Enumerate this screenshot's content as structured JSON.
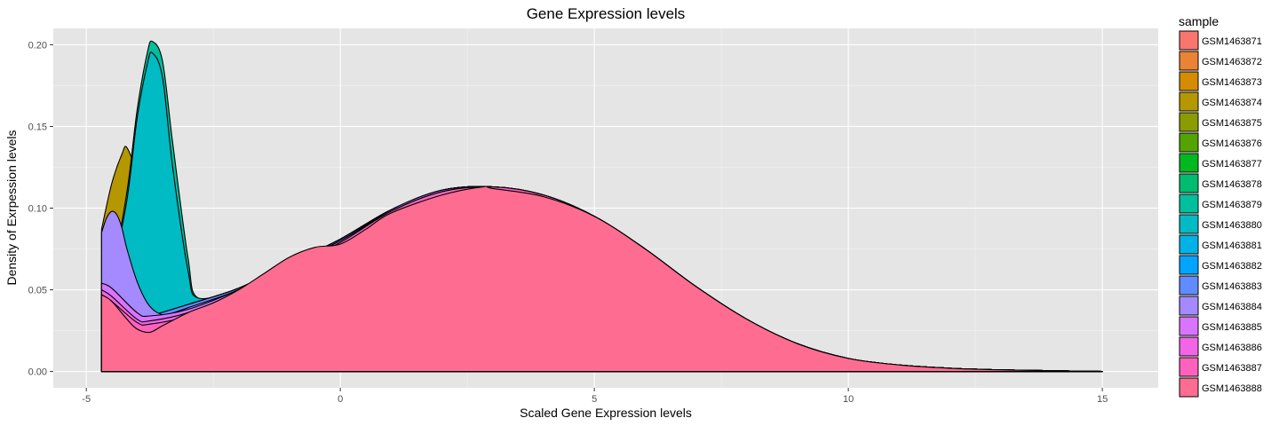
{
  "chart_data": {
    "type": "area",
    "title": "Gene Expression levels",
    "xlabel": "Scaled Gene Expression levels",
    "ylabel": "Density of Exrpession levels",
    "xlim": [
      -5.65,
      16.1
    ],
    "ylim": [
      -0.01,
      0.21
    ],
    "x_ticks": [
      -5,
      0,
      5,
      10,
      15
    ],
    "x_tick_labels": [
      "-5",
      "0",
      "5",
      "10",
      "15"
    ],
    "y_ticks": [
      0.0,
      0.05,
      0.1,
      0.15,
      0.2
    ],
    "y_tick_labels": [
      "0.00",
      "0.05",
      "0.10",
      "0.15",
      "0.20"
    ],
    "grid": true,
    "legend": {
      "title": "sample",
      "position": "right"
    },
    "series": [
      {
        "name": "GSM1463871",
        "color": "#F8766D",
        "x": [
          -4.7,
          -4.7,
          -4.5,
          -4.0,
          -3.75,
          -3.0,
          -2.0,
          -1.0,
          0.0,
          1.0,
          2.0,
          3.0,
          4.0,
          5.0,
          6.0,
          7.0,
          8.0,
          9.0,
          10.0,
          11.0,
          12.0,
          13.0,
          14.0,
          15.0
        ],
        "y": [
          0.0,
          0.045,
          0.04,
          0.032,
          0.033,
          0.04,
          0.05,
          0.065,
          0.08,
          0.098,
          0.11,
          0.113,
          0.108,
          0.095,
          0.075,
          0.052,
          0.032,
          0.017,
          0.008,
          0.004,
          0.002,
          0.001,
          0.0005,
          0.0
        ]
      },
      {
        "name": "GSM1463872",
        "color": "#EB8335",
        "x": [
          -4.7,
          -4.7,
          -4.5,
          -4.0,
          -3.75,
          -3.0,
          -2.0,
          -1.0,
          0.0,
          1.0,
          2.0,
          3.0,
          4.0,
          5.0,
          6.0,
          7.0,
          8.0,
          9.0,
          10.0,
          11.0,
          12.0,
          13.0,
          14.0,
          15.0
        ],
        "y": [
          0.0,
          0.046,
          0.041,
          0.033,
          0.034,
          0.041,
          0.051,
          0.066,
          0.081,
          0.099,
          0.111,
          0.113,
          0.108,
          0.095,
          0.075,
          0.052,
          0.032,
          0.017,
          0.008,
          0.004,
          0.002,
          0.001,
          0.0005,
          0.0
        ]
      },
      {
        "name": "GSM1463873",
        "color": "#D58C00",
        "x": [
          -4.7,
          -4.7,
          -4.5,
          -4.0,
          -3.75,
          -3.0,
          -2.0,
          -1.0,
          0.0,
          1.0,
          2.0,
          3.0,
          4.0,
          5.0,
          6.0,
          7.0,
          8.0,
          9.0,
          10.0,
          11.0,
          12.0,
          13.0,
          14.0,
          15.0
        ],
        "y": [
          0.0,
          0.046,
          0.041,
          0.033,
          0.034,
          0.041,
          0.051,
          0.066,
          0.081,
          0.099,
          0.111,
          0.113,
          0.108,
          0.095,
          0.075,
          0.052,
          0.032,
          0.017,
          0.008,
          0.004,
          0.002,
          0.001,
          0.0005,
          0.0
        ]
      },
      {
        "name": "GSM1463874",
        "color": "#B59700",
        "x": [
          -4.7,
          -4.7,
          -4.5,
          -4.3,
          -4.2,
          -4.0,
          -3.8,
          -3.5,
          -3.0,
          -2.0,
          -1.0,
          0.0,
          1.0,
          2.0,
          3.0,
          4.0,
          5.0,
          6.0,
          7.0,
          8.0,
          9.0,
          10.0,
          11.0,
          12.0,
          13.0,
          14.0,
          15.0
        ],
        "y": [
          0.0,
          0.087,
          0.115,
          0.133,
          0.137,
          0.12,
          0.09,
          0.06,
          0.043,
          0.051,
          0.066,
          0.081,
          0.099,
          0.111,
          0.113,
          0.108,
          0.095,
          0.075,
          0.052,
          0.032,
          0.017,
          0.008,
          0.004,
          0.002,
          0.001,
          0.0005,
          0.0
        ]
      },
      {
        "name": "GSM1463875",
        "color": "#8C9C00",
        "x": [
          -4.7,
          -4.7,
          -4.5,
          -4.0,
          -3.75,
          -3.0,
          -2.0,
          -1.0,
          0.0,
          1.0,
          2.0,
          3.0,
          4.0,
          5.0,
          6.0,
          7.0,
          8.0,
          9.0,
          10.0,
          11.0,
          12.0,
          13.0,
          14.0,
          15.0
        ],
        "y": [
          0.0,
          0.046,
          0.041,
          0.033,
          0.034,
          0.041,
          0.051,
          0.066,
          0.081,
          0.099,
          0.111,
          0.113,
          0.108,
          0.095,
          0.075,
          0.052,
          0.032,
          0.017,
          0.008,
          0.004,
          0.002,
          0.001,
          0.0005,
          0.0
        ]
      },
      {
        "name": "GSM1463876",
        "color": "#53A400",
        "x": [
          -4.7,
          -4.7,
          -4.5,
          -4.0,
          -3.75,
          -3.0,
          -2.0,
          -1.0,
          0.0,
          1.0,
          2.0,
          3.0,
          4.0,
          5.0,
          6.0,
          7.0,
          8.0,
          9.0,
          10.0,
          11.0,
          12.0,
          13.0,
          14.0,
          15.0
        ],
        "y": [
          0.0,
          0.046,
          0.041,
          0.033,
          0.034,
          0.041,
          0.051,
          0.066,
          0.081,
          0.099,
          0.111,
          0.113,
          0.108,
          0.095,
          0.075,
          0.052,
          0.032,
          0.017,
          0.008,
          0.004,
          0.002,
          0.001,
          0.0005,
          0.0
        ]
      },
      {
        "name": "GSM1463877",
        "color": "#00B81F",
        "x": [
          -4.7,
          -4.7,
          -4.5,
          -4.0,
          -3.75,
          -3.0,
          -2.0,
          -1.0,
          0.0,
          1.0,
          2.0,
          3.0,
          4.0,
          5.0,
          6.0,
          7.0,
          8.0,
          9.0,
          10.0,
          11.0,
          12.0,
          13.0,
          14.0,
          15.0
        ],
        "y": [
          0.0,
          0.046,
          0.041,
          0.033,
          0.034,
          0.041,
          0.051,
          0.066,
          0.081,
          0.099,
          0.111,
          0.113,
          0.108,
          0.095,
          0.075,
          0.052,
          0.032,
          0.017,
          0.008,
          0.004,
          0.002,
          0.001,
          0.0005,
          0.0
        ]
      },
      {
        "name": "GSM1463878",
        "color": "#00BC6E",
        "x": [
          -4.7,
          -4.7,
          -4.5,
          -4.0,
          -3.75,
          -3.0,
          -2.0,
          -1.0,
          0.0,
          1.0,
          2.0,
          3.0,
          4.0,
          5.0,
          6.0,
          7.0,
          8.0,
          9.0,
          10.0,
          11.0,
          12.0,
          13.0,
          14.0,
          15.0
        ],
        "y": [
          0.0,
          0.046,
          0.041,
          0.033,
          0.034,
          0.041,
          0.051,
          0.066,
          0.081,
          0.099,
          0.111,
          0.113,
          0.108,
          0.095,
          0.075,
          0.052,
          0.032,
          0.017,
          0.008,
          0.004,
          0.002,
          0.001,
          0.0005,
          0.0
        ]
      },
      {
        "name": "GSM1463879",
        "color": "#00BF9D",
        "x": [
          -4.7,
          -4.7,
          -4.5,
          -4.2,
          -4.0,
          -3.8,
          -3.7,
          -3.5,
          -3.3,
          -3.0,
          -2.8,
          -2.0,
          -1.0,
          0.0,
          1.0,
          2.0,
          3.0,
          4.0,
          5.0,
          6.0,
          7.0,
          8.0,
          9.0,
          10.0,
          11.0,
          12.0,
          13.0,
          14.0,
          15.0
        ],
        "y": [
          0.0,
          0.045,
          0.06,
          0.11,
          0.16,
          0.195,
          0.202,
          0.19,
          0.14,
          0.07,
          0.045,
          0.051,
          0.066,
          0.081,
          0.099,
          0.111,
          0.113,
          0.108,
          0.095,
          0.075,
          0.052,
          0.032,
          0.017,
          0.008,
          0.004,
          0.002,
          0.001,
          0.0005,
          0.0
        ]
      },
      {
        "name": "GSM1463880",
        "color": "#00BBC3",
        "x": [
          -4.7,
          -4.7,
          -4.5,
          -4.2,
          -4.0,
          -3.8,
          -3.7,
          -3.5,
          -3.3,
          -3.0,
          -2.8,
          -2.0,
          -1.0,
          0.0,
          1.0,
          2.0,
          3.0,
          4.0,
          5.0,
          6.0,
          7.0,
          8.0,
          9.0,
          10.0,
          11.0,
          12.0,
          13.0,
          14.0,
          15.0
        ],
        "y": [
          0.0,
          0.045,
          0.06,
          0.105,
          0.155,
          0.188,
          0.195,
          0.18,
          0.125,
          0.062,
          0.045,
          0.051,
          0.066,
          0.081,
          0.099,
          0.111,
          0.113,
          0.108,
          0.095,
          0.075,
          0.052,
          0.032,
          0.017,
          0.008,
          0.004,
          0.002,
          0.001,
          0.0005,
          0.0
        ]
      },
      {
        "name": "GSM1463881",
        "color": "#00B3E6",
        "x": [
          -4.7,
          -4.7,
          -4.5,
          -4.0,
          -3.75,
          -3.0,
          -2.0,
          -1.0,
          0.0,
          1.0,
          2.0,
          3.0,
          4.0,
          5.0,
          6.0,
          7.0,
          8.0,
          9.0,
          10.0,
          11.0,
          12.0,
          13.0,
          14.0,
          15.0
        ],
        "y": [
          0.0,
          0.046,
          0.041,
          0.033,
          0.034,
          0.041,
          0.051,
          0.066,
          0.081,
          0.099,
          0.111,
          0.113,
          0.108,
          0.095,
          0.075,
          0.052,
          0.032,
          0.017,
          0.008,
          0.004,
          0.002,
          0.001,
          0.0005,
          0.0
        ]
      },
      {
        "name": "GSM1463882",
        "color": "#00A5FF",
        "x": [
          -4.7,
          -4.7,
          -4.5,
          -4.0,
          -3.75,
          -3.0,
          -2.0,
          -1.0,
          0.0,
          1.0,
          2.0,
          3.0,
          4.0,
          5.0,
          6.0,
          7.0,
          8.0,
          9.0,
          10.0,
          11.0,
          12.0,
          13.0,
          14.0,
          15.0
        ],
        "y": [
          0.0,
          0.046,
          0.041,
          0.033,
          0.034,
          0.041,
          0.051,
          0.066,
          0.081,
          0.099,
          0.111,
          0.113,
          0.108,
          0.095,
          0.075,
          0.052,
          0.032,
          0.017,
          0.008,
          0.004,
          0.002,
          0.001,
          0.0005,
          0.0
        ]
      },
      {
        "name": "GSM1463883",
        "color": "#618CFF",
        "x": [
          -4.7,
          -4.7,
          -4.5,
          -4.0,
          -3.75,
          -3.0,
          -2.0,
          -1.0,
          0.0,
          1.0,
          2.0,
          3.0,
          4.0,
          5.0,
          6.0,
          7.0,
          8.0,
          9.0,
          10.0,
          11.0,
          12.0,
          13.0,
          14.0,
          15.0
        ],
        "y": [
          0.0,
          0.046,
          0.041,
          0.033,
          0.034,
          0.041,
          0.051,
          0.066,
          0.081,
          0.099,
          0.111,
          0.113,
          0.108,
          0.095,
          0.075,
          0.052,
          0.032,
          0.017,
          0.008,
          0.004,
          0.002,
          0.001,
          0.0005,
          0.0
        ]
      },
      {
        "name": "GSM1463884",
        "color": "#A58AFF",
        "x": [
          -4.7,
          -4.7,
          -4.6,
          -4.5,
          -4.4,
          -4.3,
          -4.2,
          -4.0,
          -3.8,
          -3.6,
          -3.4,
          -3.0,
          -2.0,
          -1.0,
          0.0,
          1.0,
          2.0,
          3.0,
          4.0,
          5.0,
          6.0,
          7.0,
          8.0,
          9.0,
          10.0,
          11.0,
          12.0,
          13.0,
          14.0,
          15.0
        ],
        "y": [
          0.0,
          0.085,
          0.094,
          0.098,
          0.096,
          0.088,
          0.075,
          0.055,
          0.042,
          0.036,
          0.035,
          0.039,
          0.05,
          0.066,
          0.08,
          0.099,
          0.111,
          0.113,
          0.108,
          0.095,
          0.075,
          0.052,
          0.032,
          0.017,
          0.008,
          0.004,
          0.002,
          0.001,
          0.0005,
          0.0
        ]
      },
      {
        "name": "GSM1463885",
        "color": "#D874FD",
        "x": [
          -4.7,
          -4.7,
          -4.5,
          -4.0,
          -3.75,
          -3.0,
          -2.0,
          -1.0,
          0.0,
          1.0,
          2.0,
          3.0,
          4.0,
          5.0,
          6.0,
          7.0,
          8.0,
          9.0,
          10.0,
          11.0,
          12.0,
          13.0,
          14.0,
          15.0
        ],
        "y": [
          0.0,
          0.054,
          0.051,
          0.036,
          0.034,
          0.038,
          0.05,
          0.065,
          0.08,
          0.098,
          0.11,
          0.113,
          0.108,
          0.095,
          0.075,
          0.052,
          0.032,
          0.017,
          0.008,
          0.004,
          0.002,
          0.001,
          0.0005,
          0.0
        ]
      },
      {
        "name": "GSM1463886",
        "color": "#F265E7",
        "x": [
          -4.7,
          -4.7,
          -4.5,
          -4.0,
          -3.75,
          -3.0,
          -2.0,
          -1.0,
          0.0,
          1.0,
          2.0,
          3.0,
          4.0,
          5.0,
          6.0,
          7.0,
          8.0,
          9.0,
          10.0,
          11.0,
          12.0,
          13.0,
          14.0,
          15.0
        ],
        "y": [
          0.0,
          0.05,
          0.046,
          0.032,
          0.031,
          0.036,
          0.049,
          0.065,
          0.08,
          0.098,
          0.11,
          0.113,
          0.108,
          0.095,
          0.075,
          0.052,
          0.032,
          0.017,
          0.008,
          0.004,
          0.002,
          0.001,
          0.0005,
          0.0
        ]
      },
      {
        "name": "GSM1463887",
        "color": "#FF62BC",
        "x": [
          -4.7,
          -4.7,
          -4.5,
          -4.0,
          -3.75,
          -3.0,
          -2.0,
          -1.0,
          0.0,
          1.0,
          2.0,
          3.0,
          4.0,
          5.0,
          6.0,
          7.0,
          8.0,
          9.0,
          10.0,
          11.0,
          12.0,
          13.0,
          14.0,
          15.0
        ],
        "y": [
          0.0,
          0.047,
          0.043,
          0.03,
          0.029,
          0.034,
          0.048,
          0.064,
          0.079,
          0.098,
          0.11,
          0.113,
          0.108,
          0.095,
          0.075,
          0.052,
          0.032,
          0.017,
          0.008,
          0.004,
          0.002,
          0.001,
          0.0005,
          0.0
        ]
      },
      {
        "name": "GSM1463888",
        "color": "#FF6C91",
        "x": [
          -4.7,
          -4.7,
          -4.5,
          -4.2,
          -4.0,
          -3.75,
          -3.5,
          -3.0,
          -2.5,
          -2.0,
          -1.5,
          -1.0,
          -0.5,
          0.0,
          0.5,
          1.0,
          2.0,
          2.8,
          3.0,
          4.0,
          5.0,
          6.0,
          7.0,
          8.0,
          9.0,
          10.0,
          11.0,
          12.0,
          13.0,
          14.0,
          15.0
        ],
        "y": [
          0.0,
          0.047,
          0.043,
          0.032,
          0.026,
          0.024,
          0.028,
          0.036,
          0.042,
          0.05,
          0.06,
          0.07,
          0.076,
          0.078,
          0.087,
          0.097,
          0.108,
          0.113,
          0.112,
          0.107,
          0.095,
          0.075,
          0.052,
          0.032,
          0.017,
          0.008,
          0.004,
          0.002,
          0.001,
          0.0005,
          0.0
        ]
      }
    ]
  }
}
